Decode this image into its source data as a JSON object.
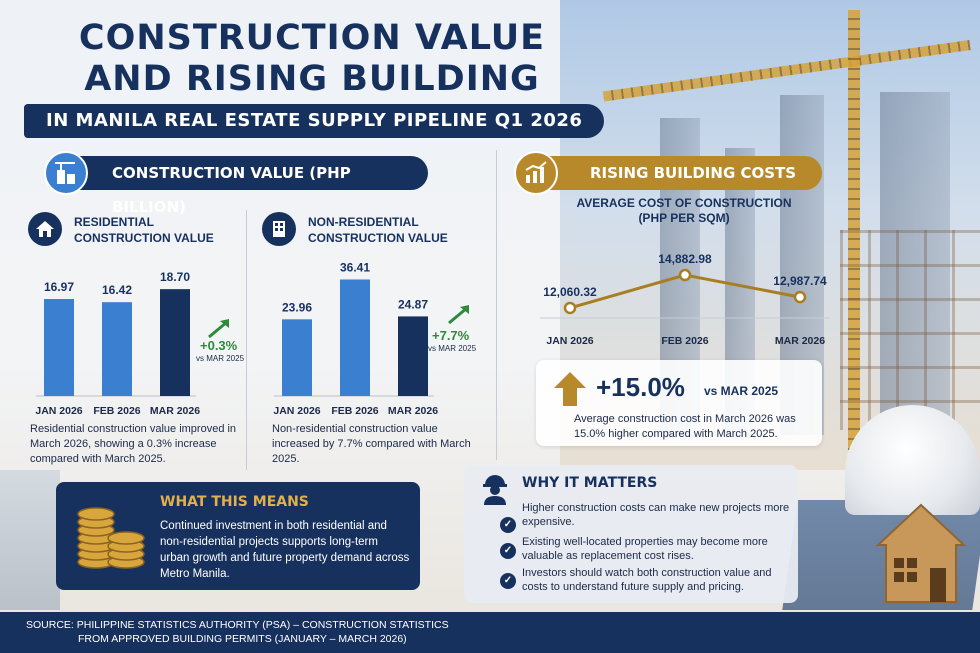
{
  "header": {
    "title": "CONSTRUCTION VALUE AND RISING BUILDING COSTS",
    "subtitle": "IN MANILA REAL ESTATE SUPPLY PIPELINE Q1 2026"
  },
  "sections": {
    "construction_value": "CONSTRUCTION VALUE (PHP BILLION)",
    "rising_costs": "RISING BUILDING COSTS"
  },
  "residential": {
    "title_line1": "RESIDENTIAL",
    "title_line2": "CONSTRUCTION VALUE",
    "change": "+0.3%",
    "change_note": "vs MAR 2025",
    "description": "Residential construction value improved in March 2026, showing a 0.3% increase compared with March 2025."
  },
  "non_residential": {
    "title_line1": "NON-RESIDENTIAL",
    "title_line2": "CONSTRUCTION VALUE",
    "change": "+7.7%",
    "change_note": "vs MAR 2025",
    "description": "Non-residential construction value increased by 7.7% compared with March 2025."
  },
  "cost_chart": {
    "title_line1": "AVERAGE COST OF CONSTRUCTION",
    "title_line2": "(PHP PER SQM)"
  },
  "cost_change": {
    "value": "+15.0%",
    "note": "vs MAR 2025",
    "description": "Average construction cost in March 2026 was 15.0% higher compared with March 2025."
  },
  "what_this_means": {
    "title": "WHAT THIS MEANS",
    "text": "Continued investment in both residential and non-residential projects supports long-term urban growth and future property demand across Metro Manila."
  },
  "why_it_matters": {
    "title": "WHY IT MATTERS",
    "items": [
      "Higher construction costs can make new projects more expensive.",
      "Existing well-located properties may become more valuable as replacement cost rises.",
      "Investors should watch both construction value and costs to understand future supply and pricing."
    ]
  },
  "footer": {
    "line1": "SOURCE:  PHILIPPINE STATISTICS AUTHORITY (PSA) – CONSTRUCTION STATISTICS",
    "line2": "FROM APPROVED BUILDING PERMITS (JANUARY – MARCH 2026)"
  },
  "colors": {
    "navy": "#17315e",
    "blue_bar": "#3b7fd0",
    "gold": "#b8892a",
    "green_up": "#2e8b3a"
  },
  "icons": [
    "crane-building-icon",
    "house-icon",
    "office-building-icon",
    "chart-up-icon",
    "up-arrow-icon",
    "coin-stack-icon",
    "worker-icon",
    "checkmark-icon"
  ],
  "chart_data": [
    {
      "type": "bar",
      "categories": [
        "JAN 2026",
        "FEB 2026",
        "MAR 2026"
      ],
      "values": [
        16.97,
        16.42,
        18.7
      ],
      "labels": [
        "16.97",
        "16.42",
        "18.70"
      ],
      "ylim": [
        0,
        21
      ]
    },
    {
      "type": "bar",
      "categories": [
        "JAN 2026",
        "FEB 2026",
        "MAR 2026"
      ],
      "values": [
        23.96,
        36.41,
        24.87
      ],
      "labels": [
        "23.96",
        "36.41",
        "24.87"
      ],
      "ylim": [
        0,
        40
      ]
    },
    {
      "type": "line",
      "title": "AVERAGE COST OF CONSTRUCTION (PHP PER SQM)",
      "categories": [
        "JAN 2026",
        "FEB 2026",
        "MAR 2026"
      ],
      "values": [
        12060.32,
        14882.98,
        12987.74
      ],
      "labels": [
        "12,060.32",
        "14,882.98",
        "12,987.74"
      ],
      "ylim": [
        10000,
        16000
      ]
    }
  ]
}
